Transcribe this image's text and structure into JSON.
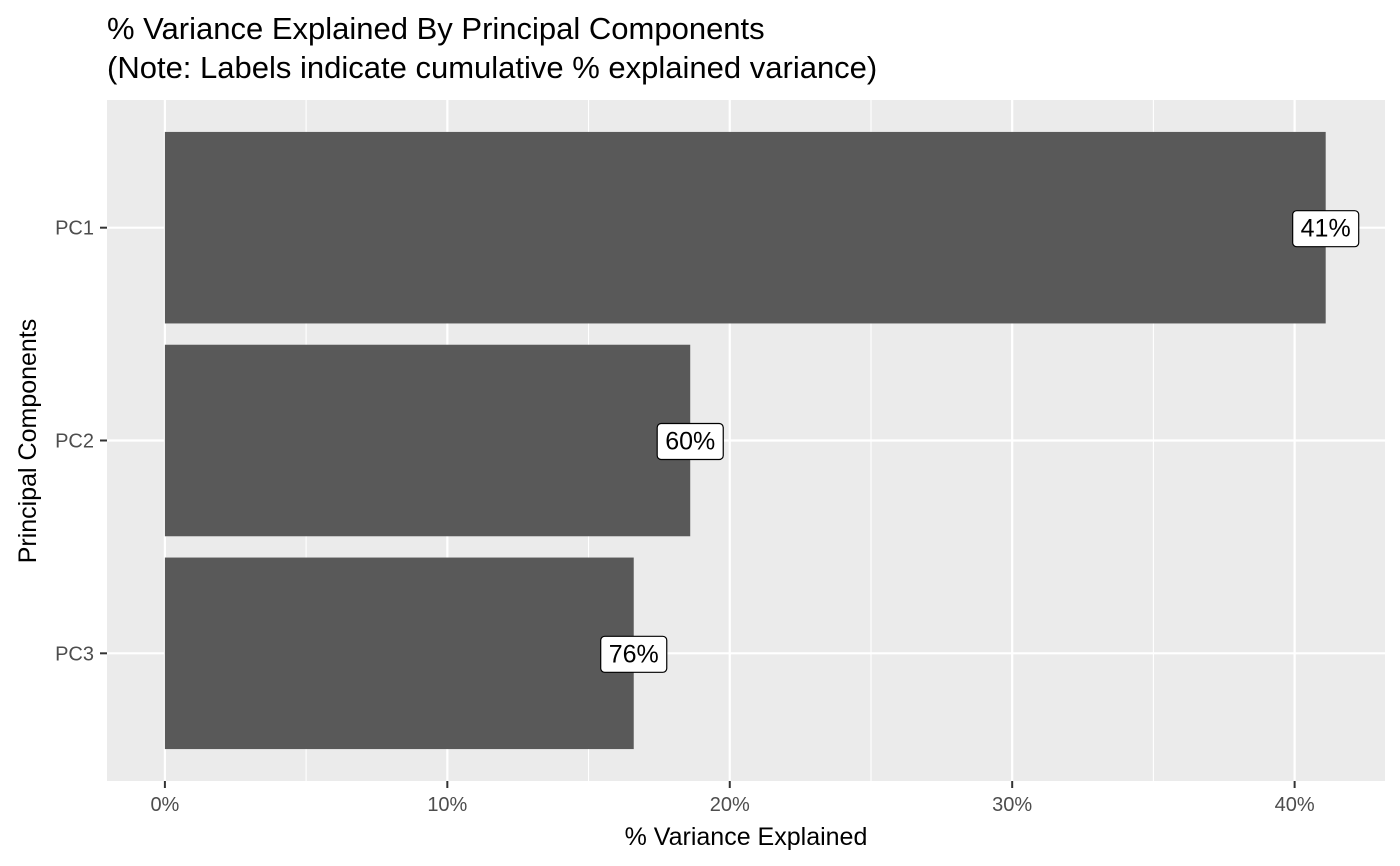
{
  "chart_data": {
    "type": "bar",
    "orientation": "horizontal",
    "title": "% Variance Explained By Principal Components",
    "subtitle": "(Note: Labels indicate cumulative % explained variance)",
    "xlabel": "% Variance Explained",
    "ylabel": "Principal Components",
    "categories": [
      "PC1",
      "PC2",
      "PC3"
    ],
    "values": [
      41.1,
      18.6,
      16.6
    ],
    "labels": [
      "41%",
      "60%",
      "76%"
    ],
    "xlim": [
      -2.05,
      43.2
    ],
    "xticks": [
      0,
      10,
      20,
      30,
      40
    ],
    "xtick_labels": [
      "0%",
      "10%",
      "20%",
      "30%",
      "40%"
    ],
    "grid": true,
    "colors": {
      "panel_background": "#ebebeb",
      "grid": "#ffffff",
      "bar": "#595959",
      "label_fill": "#ffffff",
      "label_border": "#000000"
    }
  }
}
